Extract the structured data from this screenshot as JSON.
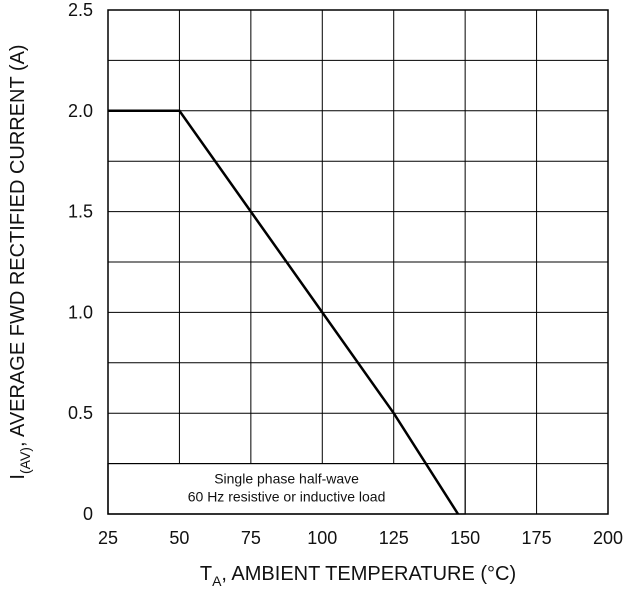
{
  "chart_data": {
    "type": "line",
    "xlabel_main": "T",
    "xlabel_sub": "A",
    "xlabel_rest": ", AMBIENT TEMPERATURE (°C)",
    "ylabel_main": "I",
    "ylabel_sub": "(AV)",
    "ylabel_rest": ", AVERAGE FWD RECTIFIED CURRENT (A)",
    "xlim": [
      25,
      200
    ],
    "ylim": [
      0,
      2.5
    ],
    "x_ticks": [
      "25",
      "50",
      "75",
      "100",
      "125",
      "150",
      "175",
      "200"
    ],
    "y_ticks": [
      "0",
      "0.5",
      "1.0",
      "1.5",
      "2.0",
      "2.5"
    ],
    "x_tick_values": [
      25,
      50,
      75,
      100,
      125,
      150,
      175,
      200
    ],
    "y_tick_values": [
      0,
      0.5,
      1.0,
      1.5,
      2.0,
      2.5
    ],
    "grid_y_step": 0.25,
    "grid": true,
    "series": [
      {
        "x": [
          25,
          50,
          75,
          100,
          125,
          147.5
        ],
        "y": [
          2.0,
          2.0,
          1.5,
          1.0,
          0.5,
          0.0
        ]
      }
    ],
    "annotation_lines": [
      "Single phase half-wave",
      "60 Hz resistive or inductive load"
    ]
  }
}
